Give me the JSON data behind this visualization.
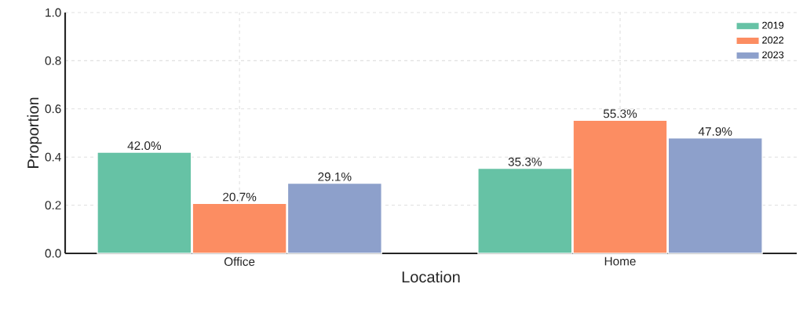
{
  "chart_data": {
    "type": "bar",
    "xlabel": "Location",
    "ylabel": "Proportion",
    "categories": [
      "Office",
      "Home"
    ],
    "series": [
      {
        "name": "2019",
        "color": "#66c2a5",
        "values": [
          0.42,
          0.353
        ],
        "value_labels": [
          "42.0%",
          "35.3%"
        ]
      },
      {
        "name": "2022",
        "color": "#fc8d62",
        "values": [
          0.207,
          0.553
        ],
        "value_labels": [
          "20.7%",
          "55.3%"
        ]
      },
      {
        "name": "2023",
        "color": "#8da0cb",
        "values": [
          0.291,
          0.479
        ],
        "value_labels": [
          "29.1%",
          "47.9%"
        ]
      }
    ],
    "ylim": [
      0,
      1
    ],
    "yticks": [
      {
        "value": 0,
        "label": "0.0"
      },
      0.2,
      0.4,
      0.6,
      0.8,
      {
        "value": 1,
        "label": "1.0"
      }
    ],
    "grid": true,
    "legend": "top right"
  }
}
